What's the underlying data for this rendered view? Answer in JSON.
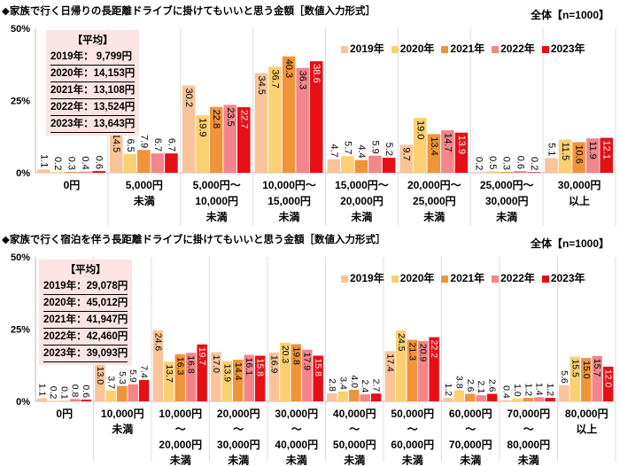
{
  "chart_data": [
    {
      "type": "bar",
      "title": "◆家族で行く日帰りの長距離ドライブに掛けてもいいと思う金額［数値入力形式］",
      "sample": "全体【n=1000】",
      "ylim": [
        0,
        50
      ],
      "yticks": [
        "0%",
        "25%",
        "50%"
      ],
      "grid": "vertical category separators",
      "legend": "top-right",
      "categories": [
        [
          "0円"
        ],
        [
          "5,000円",
          "未満"
        ],
        [
          "5,000円～",
          "10,000円",
          "未満"
        ],
        [
          "10,000円～",
          "15,000円",
          "未満"
        ],
        [
          "15,000円～",
          "20,000円",
          "未満"
        ],
        [
          "20,000円～",
          "25,000円",
          "未満"
        ],
        [
          "25,000円～",
          "30,000円",
          "未満"
        ],
        [
          "30,000円",
          "以上"
        ]
      ],
      "series": [
        {
          "name": "2019年",
          "color": "#F9C49A",
          "values": [
            1.1,
            14.5,
            30.2,
            34.5,
            4.7,
            9.7,
            0.2,
            5.1
          ]
        },
        {
          "name": "2020年",
          "color": "#FBD070",
          "values": [
            0.2,
            6.5,
            19.9,
            36.7,
            5.7,
            19.0,
            0.5,
            11.5
          ]
        },
        {
          "name": "2021年",
          "color": "#F0943A",
          "values": [
            0.3,
            7.9,
            22.8,
            40.3,
            4.4,
            13.4,
            0.3,
            10.6
          ]
        },
        {
          "name": "2022年",
          "color": "#F2868A",
          "values": [
            0.4,
            6.7,
            23.5,
            36.3,
            5.9,
            14.7,
            0.6,
            11.9
          ]
        },
        {
          "name": "2023年",
          "color": "#E60F16",
          "values": [
            0.6,
            6.7,
            22.7,
            38.6,
            5.2,
            13.9,
            0.2,
            12.1
          ]
        }
      ],
      "average": {
        "heading": "【平均】",
        "lines": [
          "2019年：  9,799円",
          "2020年：14,153円",
          "2021年：13,108円",
          "2022年：13,524円",
          "2023年：13,643円"
        ]
      }
    },
    {
      "type": "bar",
      "title": "◆家族で行く宿泊を伴う長距離ドライブに掛けてもいいと思う金額［数値入力形式］",
      "sample": "全体【n=1000】",
      "ylim": [
        0,
        50
      ],
      "yticks": [
        "0%",
        "25%",
        "50%"
      ],
      "grid": "vertical category separators",
      "legend": "top-right",
      "categories": [
        [
          "0円"
        ],
        [
          "10,000円",
          "未満"
        ],
        [
          "10,000円",
          "～",
          "20,000円",
          "未満"
        ],
        [
          "20,000円",
          "～",
          "30,000円",
          "未満"
        ],
        [
          "30,000円",
          "～",
          "40,000円",
          "未満"
        ],
        [
          "40,000円",
          "～",
          "50,000円",
          "未満"
        ],
        [
          "50,000円",
          "～",
          "60,000円",
          "未満"
        ],
        [
          "60,000円",
          "～",
          "70,000円",
          "未満"
        ],
        [
          "70,000円",
          "～",
          "80,000円",
          "未満"
        ],
        [
          "80,000円",
          "以上"
        ]
      ],
      "series": [
        {
          "name": "2019年",
          "color": "#F9C49A",
          "values": [
            1.1,
            13.0,
            24.6,
            17.0,
            16.9,
            2.8,
            17.4,
            1.2,
            0.4,
            5.6
          ]
        },
        {
          "name": "2020年",
          "color": "#FBD070",
          "values": [
            0.2,
            3.7,
            13.7,
            13.9,
            20.3,
            3.4,
            24.5,
            3.8,
            1.0,
            15.5
          ]
        },
        {
          "name": "2021年",
          "color": "#F0943A",
          "values": [
            0.1,
            5.3,
            16.3,
            14.4,
            19.8,
            4.0,
            21.3,
            2.6,
            1.2,
            15.0
          ]
        },
        {
          "name": "2022年",
          "color": "#F2868A",
          "values": [
            0.8,
            5.9,
            16.8,
            16.1,
            17.9,
            2.4,
            20.9,
            2.1,
            1.4,
            15.7
          ]
        },
        {
          "name": "2023年",
          "color": "#E60F16",
          "values": [
            0.6,
            7.4,
            19.7,
            15.8,
            15.8,
            2.7,
            22.2,
            2.6,
            1.2,
            12.0
          ]
        }
      ],
      "average": {
        "heading": "【平均】",
        "lines": [
          "2019年：29,078円",
          "2020年：45,012円",
          "2021年：41,947円",
          "2022年：42,460円",
          "2023年：39,093円"
        ]
      }
    }
  ]
}
